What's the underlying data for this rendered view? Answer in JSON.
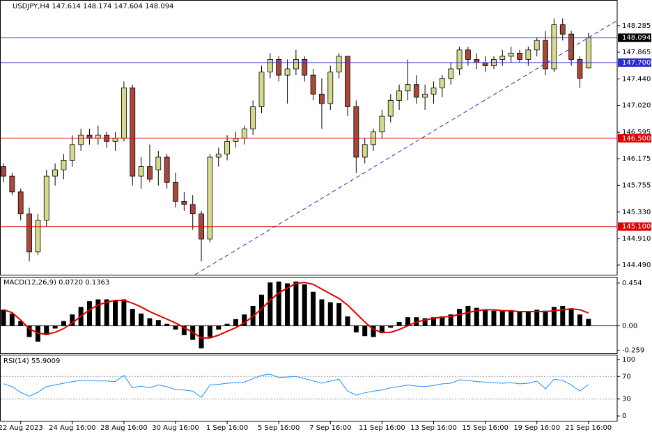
{
  "chart_data": [
    {
      "type": "candlestick",
      "title": "USDJPY,H4  147.614 148.174 147.604 148.094",
      "categories": [
        null,
        null,
        "22 Aug 2023",
        null,
        null,
        null,
        null,
        null,
        "24 Aug 16:00",
        null,
        null,
        null,
        null,
        null,
        "28 Aug 16:00",
        null,
        null,
        null,
        null,
        null,
        "30 Aug 16:00",
        null,
        null,
        null,
        null,
        null,
        "1 Sep 16:00",
        null,
        null,
        null,
        null,
        null,
        "5 Sep 16:00",
        null,
        null,
        null,
        null,
        null,
        "7 Sep 16:00",
        null,
        null,
        null,
        null,
        null,
        "11 Sep 16:00",
        null,
        null,
        null,
        null,
        null,
        "13 Sep 16:00",
        null,
        null,
        null,
        null,
        null,
        "15 Sep 16:00",
        null,
        null,
        null,
        null,
        null,
        "19 Sep 16:00",
        null,
        null,
        null,
        null,
        null,
        "21 Sep 16:00"
      ],
      "open": [
        146.05,
        145.9,
        145.65,
        145.3,
        144.7,
        145.2,
        145.9,
        146.0,
        146.15,
        146.4,
        146.55,
        146.5,
        146.55,
        146.45,
        146.5,
        147.3,
        145.9,
        146.05,
        146.0,
        146.2,
        145.8,
        145.5,
        145.45,
        145.3,
        144.9,
        146.2,
        146.25,
        146.45,
        146.5,
        146.65,
        147.0,
        147.55,
        147.75,
        147.5,
        147.6,
        147.75,
        147.5,
        147.2,
        147.05,
        147.55,
        147.8,
        147.0,
        146.2,
        146.4,
        146.6,
        146.85,
        147.1,
        147.25,
        147.35,
        147.15,
        147.2,
        147.3,
        147.45,
        147.6,
        147.9,
        147.75,
        147.7,
        147.65,
        147.75,
        147.8,
        147.85,
        147.75,
        147.9,
        148.05,
        147.6,
        148.3,
        148.15,
        147.75,
        147.614
      ],
      "high": [
        146.1,
        145.95,
        145.7,
        145.4,
        145.3,
        146.0,
        146.1,
        146.25,
        146.55,
        146.65,
        146.65,
        146.7,
        146.6,
        146.6,
        147.4,
        147.35,
        146.2,
        146.4,
        146.3,
        146.25,
        145.95,
        145.65,
        145.6,
        145.35,
        146.25,
        146.35,
        146.55,
        146.6,
        146.7,
        147.1,
        147.65,
        147.85,
        147.8,
        147.75,
        147.9,
        147.8,
        147.6,
        147.45,
        147.65,
        147.85,
        147.8,
        147.1,
        146.5,
        146.65,
        146.95,
        147.2,
        147.35,
        147.75,
        147.5,
        147.35,
        147.4,
        147.5,
        147.7,
        147.95,
        147.95,
        147.85,
        147.8,
        147.8,
        147.9,
        147.95,
        147.9,
        147.95,
        148.1,
        148.2,
        148.4,
        148.4,
        148.2,
        147.8,
        148.174
      ],
      "low": [
        145.8,
        145.6,
        145.2,
        144.55,
        144.65,
        145.1,
        145.75,
        145.85,
        146.05,
        146.3,
        146.4,
        146.4,
        146.35,
        146.3,
        146.45,
        145.75,
        145.7,
        145.8,
        145.75,
        145.7,
        145.4,
        145.35,
        145.05,
        144.55,
        144.85,
        146.05,
        146.15,
        146.35,
        146.4,
        146.55,
        146.9,
        147.45,
        147.4,
        147.05,
        147.5,
        147.4,
        147.1,
        146.65,
        146.95,
        147.45,
        146.85,
        145.95,
        146.1,
        146.3,
        146.5,
        146.75,
        146.95,
        147.1,
        147.05,
        146.95,
        147.05,
        147.15,
        147.35,
        147.5,
        147.65,
        147.6,
        147.55,
        147.6,
        147.65,
        147.7,
        147.7,
        147.65,
        147.8,
        147.5,
        147.55,
        148.05,
        147.65,
        147.3,
        147.604
      ],
      "close": [
        145.9,
        145.65,
        145.3,
        144.7,
        145.2,
        145.9,
        146.0,
        146.15,
        146.4,
        146.55,
        146.5,
        146.55,
        146.45,
        146.5,
        147.3,
        145.9,
        146.05,
        145.85,
        146.2,
        145.8,
        145.5,
        145.45,
        145.3,
        144.9,
        146.2,
        146.25,
        146.45,
        146.5,
        146.65,
        147.0,
        147.55,
        147.75,
        147.5,
        147.6,
        147.75,
        147.5,
        147.2,
        147.05,
        147.55,
        147.8,
        147.0,
        146.2,
        146.4,
        146.6,
        146.85,
        147.1,
        147.25,
        147.35,
        147.15,
        147.2,
        147.3,
        147.45,
        147.6,
        147.9,
        147.75,
        147.7,
        147.65,
        147.75,
        147.8,
        147.85,
        147.75,
        147.9,
        148.05,
        147.6,
        148.3,
        148.15,
        147.75,
        147.45,
        148.094
      ],
      "up_color": "#d6da8e",
      "down_color": "#a8483a",
      "ylim": [
        144.336,
        148.681
      ],
      "yticks": [
        148.285,
        147.865,
        {
          "value": 147.44,
          "label": "147.440"
        },
        {
          "value": 147.02,
          "label": "147.020"
        },
        146.595,
        146.175,
        145.755,
        {
          "value": 145.33,
          "label": "145.330"
        },
        {
          "value": 144.91,
          "label": "144.910"
        },
        {
          "value": 144.49,
          "label": "144.490"
        }
      ],
      "levels": [
        {
          "value": 148.094,
          "color": "#2b2bd0",
          "tag_color": "#000000"
        },
        {
          "value": 147.7,
          "label": "147.700",
          "color": "#2b2bd0",
          "tag_color": "#2b2bd0"
        },
        {
          "value": 146.5,
          "label": "146.500",
          "color": "#e00000",
          "tag_color": "#e00000"
        },
        {
          "value": 145.1,
          "label": "145.100",
          "color": "#e00000",
          "tag_color": "#e00000"
        }
      ]
    },
    {
      "type": "macd",
      "title": "MACD(12,26,9) 0.0720 0.1363",
      "values": [
        0.17,
        0.13,
        0.05,
        -0.12,
        -0.17,
        -0.1,
        -0.03,
        0.05,
        0.12,
        0.2,
        0.26,
        0.28,
        0.28,
        0.27,
        0.28,
        0.18,
        0.13,
        0.08,
        0.06,
        0.02,
        -0.04,
        -0.1,
        -0.15,
        -0.24,
        -0.12,
        -0.04,
        0.02,
        0.07,
        0.12,
        0.21,
        0.33,
        0.46,
        0.47,
        0.45,
        0.47,
        0.44,
        0.36,
        0.28,
        0.25,
        0.24,
        0.1,
        -0.07,
        -0.11,
        -0.12,
        -0.08,
        -0.02,
        0.04,
        0.09,
        0.09,
        0.08,
        0.09,
        0.1,
        0.12,
        0.18,
        0.21,
        0.19,
        0.17,
        0.16,
        0.16,
        0.16,
        0.15,
        0.15,
        0.17,
        0.16,
        0.2,
        0.21,
        0.18,
        0.12,
        0.072
      ],
      "signal": [
        0.17,
        0.14,
        0.06,
        -0.03,
        -0.08,
        -0.09,
        -0.07,
        -0.03,
        0.03,
        0.1,
        0.17,
        0.22,
        0.25,
        0.27,
        0.27,
        0.24,
        0.2,
        0.15,
        0.11,
        0.07,
        0.03,
        -0.02,
        -0.07,
        -0.13,
        -0.13,
        -0.1,
        -0.06,
        -0.02,
        0.03,
        0.1,
        0.18,
        0.27,
        0.35,
        0.4,
        0.45,
        0.46,
        0.44,
        0.39,
        0.34,
        0.29,
        0.22,
        0.13,
        0.04,
        -0.04,
        -0.07,
        -0.07,
        -0.04,
        0.0,
        0.04,
        0.06,
        0.08,
        0.09,
        0.1,
        0.12,
        0.14,
        0.16,
        0.17,
        0.17,
        0.16,
        0.16,
        0.15,
        0.15,
        0.15,
        0.15,
        0.16,
        0.17,
        0.18,
        0.17,
        0.1363
      ],
      "color": "#000000",
      "signal_color": "#e00000",
      "ylim": [
        -0.293,
        0.5126
      ],
      "yticks": [
        0.454,
        {
          "value": 0,
          "label": "0.00"
        },
        -0.259
      ]
    },
    {
      "type": "rsi",
      "title": "RSI(14) 55.9009",
      "values": [
        57,
        52,
        42,
        35,
        42,
        52,
        55,
        58,
        61,
        63,
        63,
        62,
        62,
        61,
        72,
        50,
        53,
        50,
        55,
        52,
        47,
        46,
        44,
        33,
        55,
        56,
        58,
        59,
        60,
        66,
        72,
        74,
        68,
        69,
        70,
        66,
        62,
        58,
        62,
        65,
        44,
        37,
        41,
        44,
        46,
        50,
        52,
        55,
        53,
        52,
        54,
        57,
        58,
        64,
        63,
        61,
        60,
        59,
        58,
        59,
        57,
        58,
        62,
        48,
        65,
        63,
        55,
        44,
        55.9009
      ],
      "color": "#1e90ff",
      "ylim": [
        -8.5,
        107.3
      ],
      "yticks": [
        100,
        70,
        30,
        0
      ],
      "levels": [
        70,
        30
      ]
    }
  ]
}
